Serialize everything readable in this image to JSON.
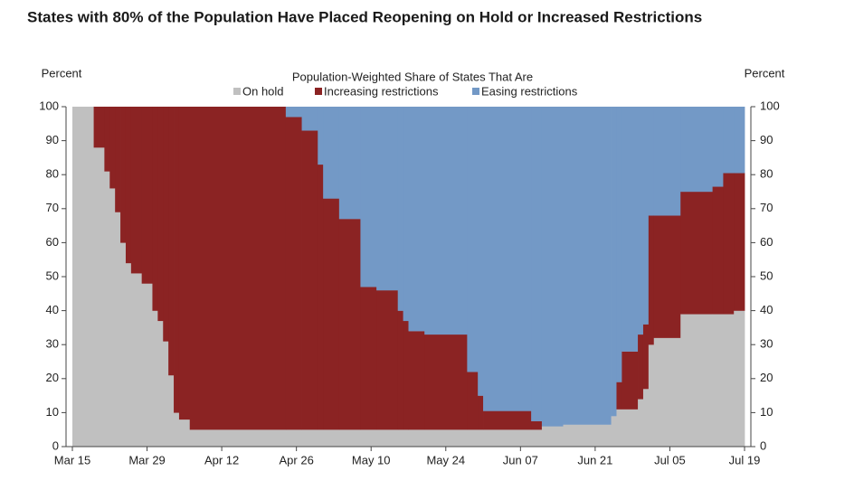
{
  "chart_data": {
    "type": "stacked-step-area",
    "title": "States with 80% of the Population Have Placed Reopening on Hold or Increased Restrictions",
    "legend_title": "Population-Weighted Share of States That Are",
    "y_label": "Percent",
    "y2_label": "Percent",
    "x": [
      0,
      4,
      6,
      7,
      8,
      9,
      10,
      11,
      13,
      15,
      16,
      17,
      18,
      19,
      20,
      22,
      40,
      43,
      46,
      47,
      50,
      54,
      57,
      61,
      62,
      63,
      66,
      74,
      76,
      77,
      86,
      88,
      92,
      101,
      102,
      103,
      106,
      107,
      108,
      109,
      114,
      120,
      122,
      124
    ],
    "xlim": [
      0,
      126
    ],
    "xticks": [
      {
        "value": 0,
        "label": "Mar 15"
      },
      {
        "value": 14,
        "label": "Mar 29"
      },
      {
        "value": 28,
        "label": "Apr 12"
      },
      {
        "value": 42,
        "label": "Apr 26"
      },
      {
        "value": 56,
        "label": "May 10"
      },
      {
        "value": 70,
        "label": "May 24"
      },
      {
        "value": 84,
        "label": "Jun 07"
      },
      {
        "value": 98,
        "label": "Jun 21"
      },
      {
        "value": 112,
        "label": "Jul 05"
      },
      {
        "value": 126,
        "label": "Jul 19"
      }
    ],
    "ylim": [
      0,
      100
    ],
    "yticks": [
      0,
      10,
      20,
      30,
      40,
      50,
      60,
      70,
      80,
      90,
      100
    ],
    "y2lim": [
      0,
      100
    ],
    "y2ticks": [
      0,
      10,
      20,
      30,
      40,
      50,
      60,
      70,
      80,
      90,
      100
    ],
    "series": [
      {
        "name": "On hold",
        "color": "#c0c0c0",
        "values": [
          100,
          88,
          81,
          76,
          69,
          60,
          54,
          51,
          48,
          40,
          37,
          31,
          21,
          10,
          8,
          5,
          5,
          5,
          5,
          5,
          5,
          5,
          5,
          5,
          5,
          5,
          5,
          5,
          5,
          5,
          5,
          6,
          6.5,
          9,
          11,
          11,
          14,
          17,
          30,
          32,
          39,
          39,
          39,
          40
        ]
      },
      {
        "name": "Increasing restrictions",
        "color": "#8b2323",
        "values": [
          0,
          12,
          19,
          24,
          31,
          40,
          46,
          49,
          52,
          60,
          63,
          69,
          79,
          90,
          92,
          95,
          92,
          88,
          78,
          68,
          62,
          42,
          41,
          35,
          32,
          29,
          28,
          17,
          10,
          5.5,
          2.5,
          0,
          0,
          0,
          8,
          17,
          19,
          19,
          38,
          36,
          36,
          37.5,
          41.5,
          40.5
        ]
      },
      {
        "name": "Easing restrictions",
        "color": "#7399c6",
        "values": [
          0,
          0,
          0,
          0,
          0,
          0,
          0,
          0,
          0,
          0,
          0,
          0,
          0,
          0,
          0,
          0,
          3,
          7,
          17,
          27,
          33,
          53,
          54,
          60,
          63,
          66,
          67,
          78,
          85,
          89.5,
          92.5,
          94,
          93.5,
          91,
          81,
          72,
          67,
          64,
          32,
          32,
          25,
          23.5,
          19.5,
          19.5
        ]
      }
    ]
  }
}
